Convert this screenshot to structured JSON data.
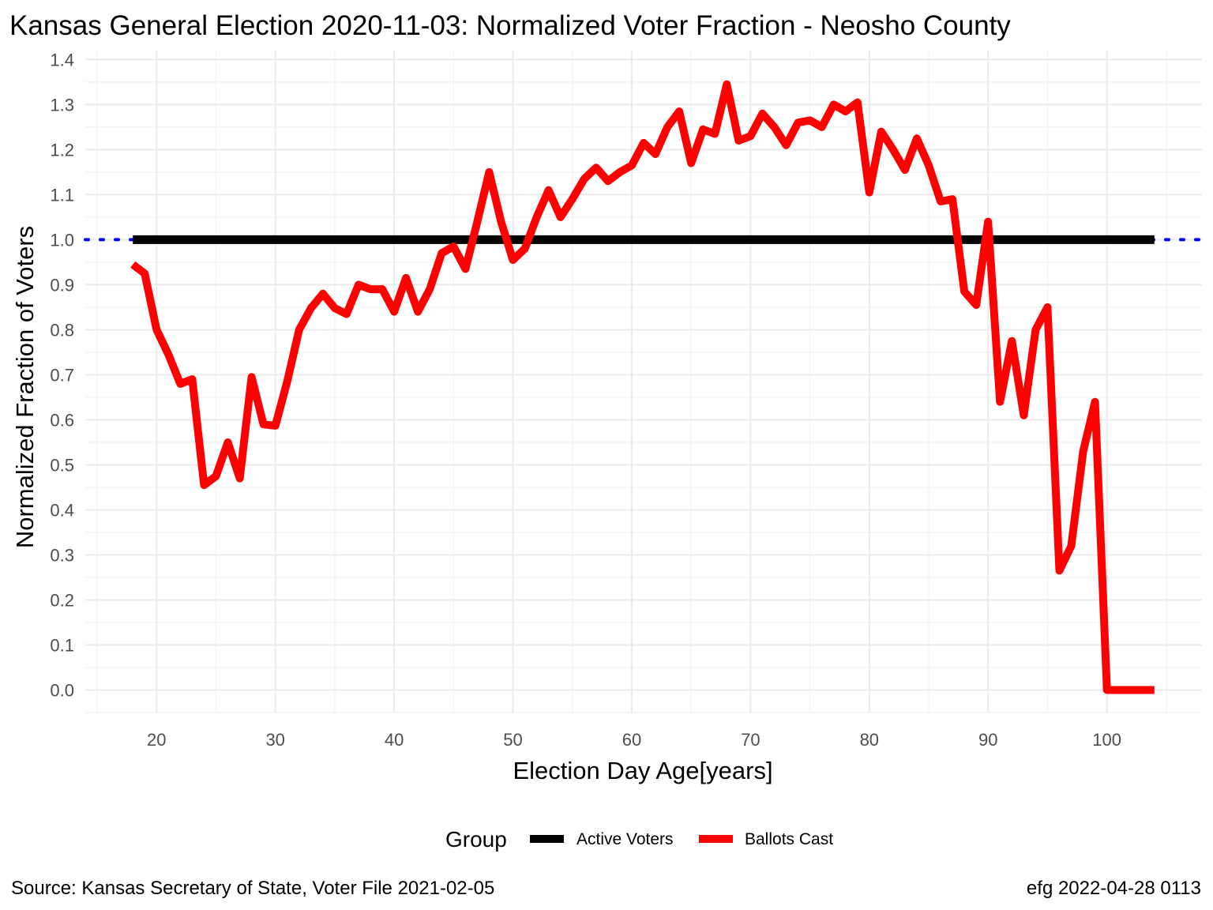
{
  "chart_data": {
    "type": "line",
    "title": "Kansas General Election 2020-11-03:  Normalized Voter Fraction - Neosho County",
    "xlabel": "Election Day Age[years]",
    "ylabel": "Normalized Fraction of Voters",
    "xlim": [
      14,
      108
    ],
    "ylim": [
      -0.05,
      1.42
    ],
    "x_ticks": [
      20,
      30,
      40,
      50,
      60,
      70,
      80,
      90,
      100
    ],
    "y_ticks": [
      0.0,
      0.1,
      0.2,
      0.3,
      0.4,
      0.5,
      0.6,
      0.7,
      0.8,
      0.9,
      1.0,
      1.1,
      1.2,
      1.3,
      1.4
    ],
    "y_tick_labels": [
      "0.0",
      "0.1",
      "0.2",
      "0.3",
      "0.4",
      "0.5",
      "0.6",
      "0.7",
      "0.8",
      "0.9",
      "1.0",
      "1.1",
      "1.2",
      "1.3",
      "1.4"
    ],
    "grid": true,
    "reference_line": {
      "y": 1.0,
      "color": "#0000ff",
      "style": "dotted"
    },
    "legend": {
      "title": "Group",
      "position": "bottom"
    },
    "series": [
      {
        "name": "Active Voters",
        "color": "#000000",
        "x": [
          18,
          104
        ],
        "y": [
          1.0,
          1.0
        ]
      },
      {
        "name": "Ballots Cast",
        "color": "#ff0000",
        "x": [
          18,
          19,
          20,
          21,
          22,
          23,
          24,
          25,
          26,
          27,
          28,
          29,
          30,
          31,
          32,
          33,
          34,
          35,
          36,
          37,
          38,
          39,
          40,
          41,
          42,
          43,
          44,
          45,
          46,
          47,
          48,
          49,
          50,
          51,
          52,
          53,
          54,
          55,
          56,
          57,
          58,
          59,
          60,
          61,
          62,
          63,
          64,
          65,
          66,
          67,
          68,
          69,
          70,
          71,
          72,
          73,
          74,
          75,
          76,
          77,
          78,
          79,
          80,
          81,
          82,
          83,
          84,
          85,
          86,
          87,
          88,
          89,
          90,
          91,
          92,
          93,
          94,
          95,
          96,
          97,
          98,
          99,
          100,
          101,
          102,
          103,
          104
        ],
        "y": [
          0.945,
          0.925,
          0.8,
          0.745,
          0.68,
          0.69,
          0.455,
          0.475,
          0.55,
          0.47,
          0.695,
          0.59,
          0.587,
          0.685,
          0.8,
          0.848,
          0.88,
          0.848,
          0.835,
          0.9,
          0.89,
          0.89,
          0.84,
          0.915,
          0.84,
          0.89,
          0.97,
          0.985,
          0.935,
          1.04,
          1.15,
          1.04,
          0.955,
          0.98,
          1.05,
          1.11,
          1.05,
          1.09,
          1.135,
          1.16,
          1.13,
          1.15,
          1.165,
          1.215,
          1.19,
          1.25,
          1.285,
          1.17,
          1.245,
          1.235,
          1.345,
          1.22,
          1.23,
          1.28,
          1.25,
          1.21,
          1.26,
          1.265,
          1.25,
          1.3,
          1.285,
          1.305,
          1.105,
          1.24,
          1.2,
          1.155,
          1.225,
          1.165,
          1.085,
          1.09,
          0.885,
          0.855,
          1.04,
          0.64,
          0.775,
          0.61,
          0.8,
          0.85,
          0.265,
          0.32,
          0.53,
          0.64,
          0.0,
          0.0,
          0.0,
          0.0,
          0.0
        ]
      }
    ]
  },
  "caption": {
    "source": "Source:  Kansas Secretary of State, Voter File  2021-02-05",
    "credit": "efg 2022-04-28 0113"
  }
}
